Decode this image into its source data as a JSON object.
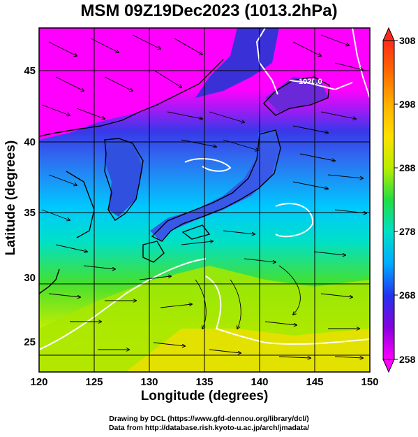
{
  "title": "MSM 09Z19Dec2023 (1013.2hPa)",
  "x_axis": {
    "label": "Longitude (degrees)",
    "ticks": [
      120,
      125,
      130,
      135,
      140,
      145,
      150
    ]
  },
  "y_axis": {
    "label": "Latitude  (degrees)",
    "ticks": [
      25,
      30,
      35,
      40,
      45
    ]
  },
  "colorbar": {
    "ticks": [
      258,
      268,
      278,
      288,
      298,
      308
    ],
    "colors": [
      "#ff00ff",
      "#7a00e0",
      "#2233ee",
      "#00bbff",
      "#00e6c0",
      "#22dd44",
      "#ccee00",
      "#ffcc00",
      "#ff8800",
      "#ff3322"
    ]
  },
  "isobar_label": "1020.0",
  "credits": {
    "line1": "Drawing by DCL (https://www.gfd-dennou.org/library/dcl/)",
    "line2": "Data from http://database.rish.kyoto-u.ac.jp/arch/jmadata/"
  }
}
